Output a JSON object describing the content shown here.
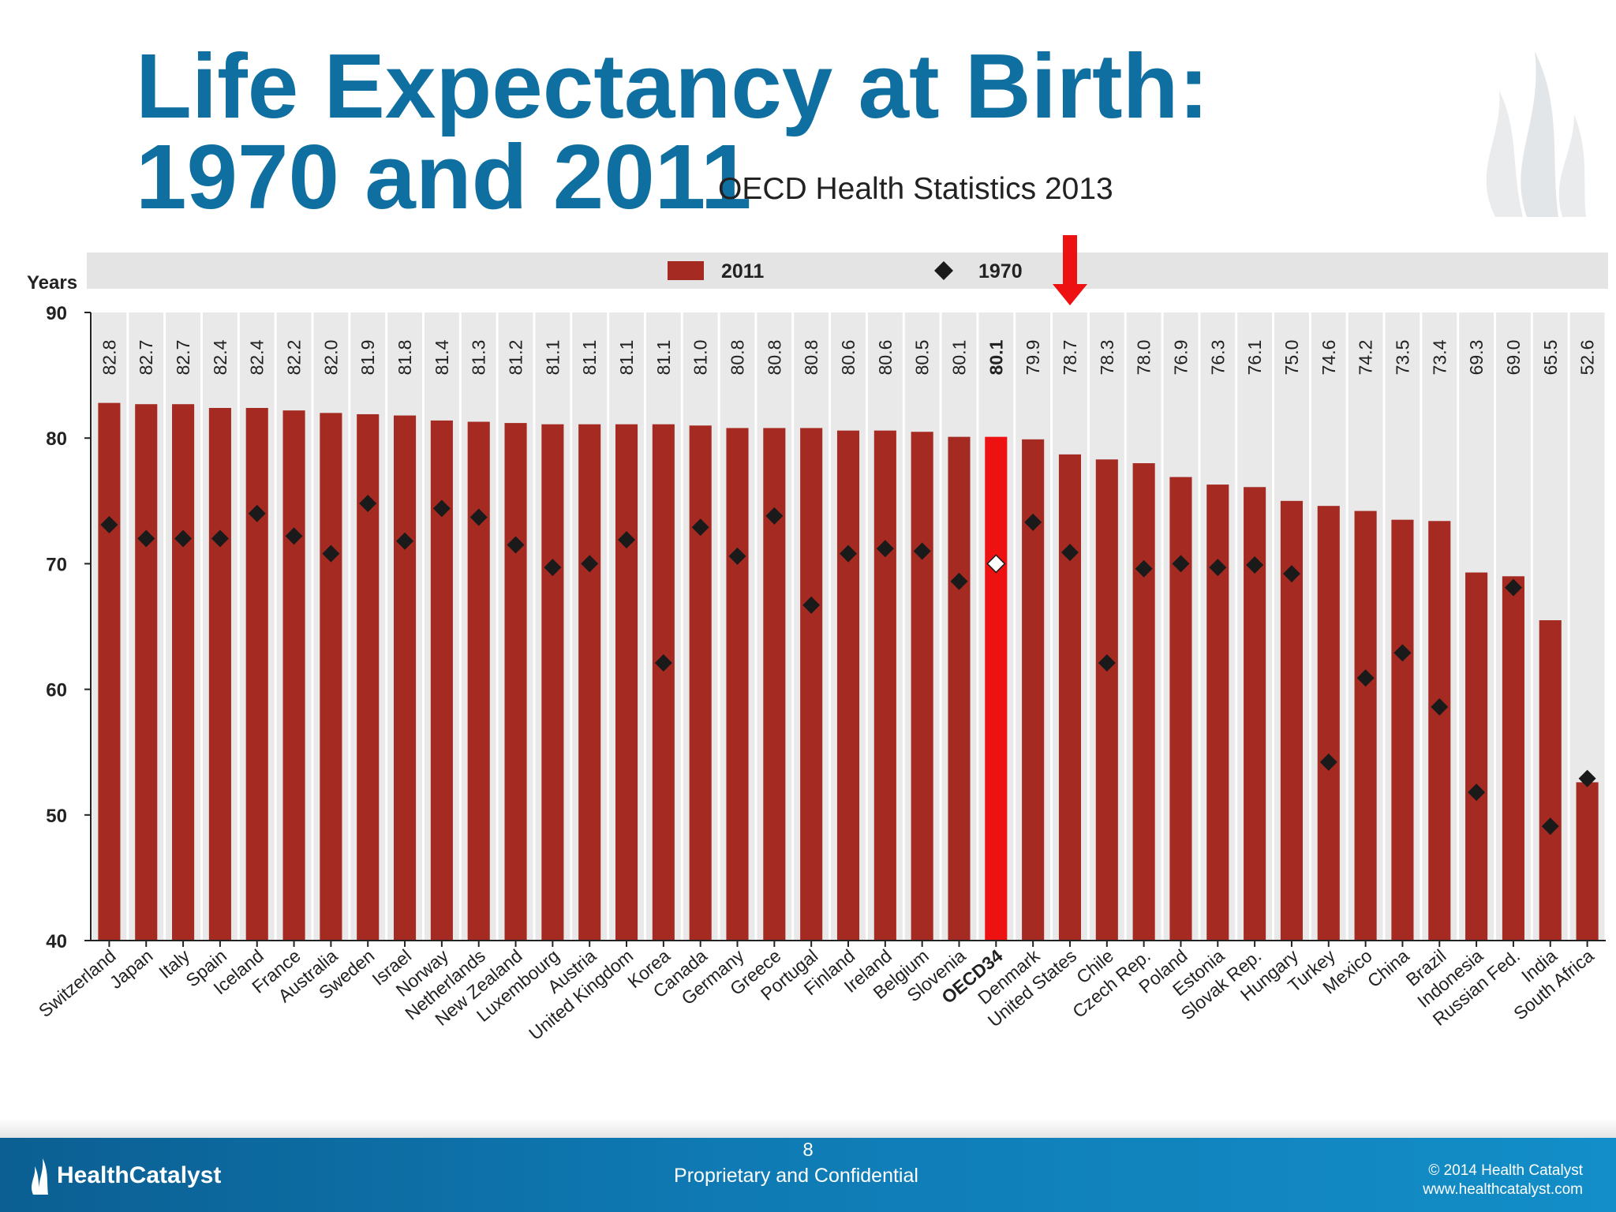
{
  "slide": {
    "title": "Life Expectancy at Birth: 1970 and 2011",
    "subtitle": "OECD Health Statistics 2013"
  },
  "footer": {
    "brand": "HealthCatalyst",
    "page_number": "8",
    "confidential": "Proprietary and Confidential",
    "copyright": "© 2014 Health Catalyst",
    "website": "www.healthcatalyst.com"
  },
  "colors": {
    "title": "#0f6fa0",
    "bar_2011": "#a52a22",
    "bar_highlight": "#ee1111",
    "marker_1970": "#1a1a1a",
    "arrow": "#ee1111",
    "footer": "#0f7ab4"
  },
  "chart_data": {
    "type": "bar",
    "ylabel": "Years",
    "ylim": [
      40,
      90
    ],
    "yticks": [
      40,
      50,
      60,
      70,
      80,
      90
    ],
    "legend": {
      "placement": "top",
      "entries": [
        "2011",
        "1970"
      ]
    },
    "highlighted_category": "OECD34",
    "arrow_points_to": "United States",
    "categories": [
      "Switzerland",
      "Japan",
      "Italy",
      "Spain",
      "Iceland",
      "France",
      "Australia",
      "Sweden",
      "Israel",
      "Norway",
      "Netherlands",
      "New Zealand",
      "Luxembourg",
      "Austria",
      "United Kingdom",
      "Korea",
      "Canada",
      "Germany",
      "Greece",
      "Portugal",
      "Finland",
      "Ireland",
      "Belgium",
      "Slovenia",
      "OECD34",
      "Denmark",
      "United States",
      "Chile",
      "Czech Rep.",
      "Poland",
      "Estonia",
      "Slovak Rep.",
      "Hungary",
      "Turkey",
      "Mexico",
      "China",
      "Brazil",
      "Indonesia",
      "Russian Fed.",
      "India",
      "South Africa"
    ],
    "series": [
      {
        "name": "2011",
        "style": "bar",
        "values": [
          82.8,
          82.7,
          82.7,
          82.4,
          82.4,
          82.2,
          82.0,
          81.9,
          81.8,
          81.4,
          81.3,
          81.2,
          81.1,
          81.1,
          81.1,
          81.1,
          81.0,
          80.8,
          80.8,
          80.8,
          80.6,
          80.6,
          80.5,
          80.1,
          80.1,
          79.9,
          78.7,
          78.3,
          78.0,
          76.9,
          76.3,
          76.1,
          75.0,
          74.6,
          74.2,
          73.5,
          73.4,
          69.3,
          69.0,
          65.5,
          52.6
        ],
        "value_labels": [
          "82.8",
          "82.7",
          "82.7",
          "82.4",
          "82.4",
          "82.2",
          "82.0",
          "81.9",
          "81.8",
          "81.4",
          "81.3",
          "81.2",
          "81.1",
          "81.1",
          "81.1",
          "81.1",
          "81.0",
          "80.8",
          "80.8",
          "80.8",
          "80.6",
          "80.6",
          "80.5",
          "80.1",
          "80.1",
          "79.9",
          "78.7",
          "78.3",
          "78.0",
          "76.9",
          "76.3",
          "76.1",
          "75.0",
          "74.6",
          "74.2",
          "73.5",
          "73.4",
          "69.3",
          "69.0",
          "65.5",
          "52.6"
        ]
      },
      {
        "name": "1970",
        "style": "diamond-marker",
        "values": [
          73.1,
          72.0,
          72.0,
          72.0,
          74.0,
          72.2,
          70.8,
          74.8,
          71.8,
          74.4,
          73.7,
          71.5,
          69.7,
          70.0,
          71.9,
          62.1,
          72.9,
          70.6,
          73.8,
          66.7,
          70.8,
          71.2,
          71.0,
          68.6,
          70.0,
          73.3,
          70.9,
          62.1,
          69.6,
          70.0,
          69.7,
          69.9,
          69.2,
          54.2,
          60.9,
          62.9,
          58.6,
          51.8,
          68.1,
          49.1,
          52.9
        ]
      }
    ]
  }
}
